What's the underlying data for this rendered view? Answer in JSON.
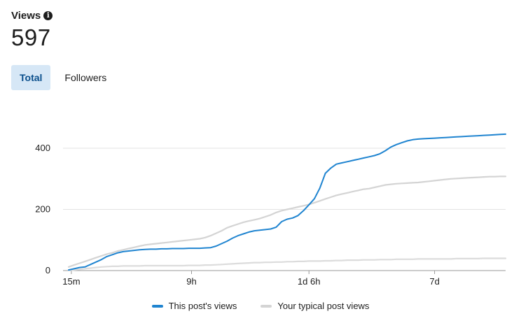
{
  "header": {
    "title": "Views",
    "info_icon": "i",
    "count": "597"
  },
  "tabs": [
    {
      "label": "Total",
      "active": true
    },
    {
      "label": "Followers",
      "active": false
    }
  ],
  "chart_data": {
    "type": "line",
    "ylim": [
      0,
      450
    ],
    "y_ticks": [
      0,
      200,
      400
    ],
    "x_ticks": [
      "15m",
      "9h",
      "1d 6h",
      "7d"
    ],
    "grid": true,
    "legend": "bottom",
    "x": [
      0,
      1,
      2,
      3,
      4,
      5,
      6,
      7,
      8,
      9,
      10,
      11,
      12,
      13,
      14,
      15,
      16,
      17,
      18,
      19,
      20,
      21,
      22,
      23,
      24,
      25,
      26,
      27,
      28,
      29,
      30,
      31,
      32,
      33,
      34,
      35,
      36,
      37,
      38,
      39,
      40,
      41,
      42,
      43,
      44,
      45,
      46,
      47,
      48,
      49,
      50,
      51,
      52,
      53,
      54,
      55,
      56,
      57,
      58,
      59,
      60,
      61,
      62,
      63,
      64,
      65,
      66,
      67,
      68,
      69,
      70,
      71,
      72,
      73,
      74,
      75,
      76,
      77,
      78,
      79,
      80
    ],
    "series": [
      {
        "name": "This post's views",
        "color": "#1f84d0",
        "values": [
          2,
          6,
          10,
          12,
          20,
          28,
          36,
          46,
          52,
          58,
          62,
          64,
          66,
          68,
          69,
          70,
          70,
          71,
          71,
          72,
          72,
          72,
          73,
          73,
          73,
          74,
          75,
          80,
          88,
          96,
          106,
          114,
          120,
          126,
          130,
          132,
          134,
          136,
          142,
          160,
          168,
          172,
          180,
          196,
          215,
          235,
          270,
          318,
          335,
          348,
          352,
          356,
          360,
          364,
          368,
          372,
          376,
          382,
          392,
          404,
          412,
          418,
          424,
          428,
          430,
          431,
          432,
          433,
          434,
          435,
          436,
          437,
          438,
          439,
          440,
          441,
          442,
          443,
          444,
          445,
          446
        ]
      },
      {
        "name": "Your typical post views",
        "color": "#d4d4d4",
        "values": [
          12,
          18,
          24,
          30,
          36,
          42,
          48,
          54,
          58,
          64,
          68,
          72,
          76,
          80,
          84,
          86,
          88,
          90,
          92,
          94,
          96,
          98,
          100,
          102,
          104,
          108,
          114,
          122,
          130,
          140,
          146,
          152,
          158,
          162,
          166,
          170,
          176,
          182,
          190,
          196,
          200,
          204,
          208,
          212,
          216,
          222,
          228,
          234,
          240,
          246,
          250,
          254,
          258,
          262,
          266,
          268,
          272,
          276,
          280,
          282,
          284,
          285,
          286,
          287,
          288,
          290,
          292,
          294,
          296,
          298,
          300,
          301,
          302,
          303,
          304,
          305,
          306,
          307,
          307,
          308,
          308
        ]
      },
      {
        "name": "",
        "color": "#dcdcdc",
        "values": [
          0,
          2,
          4,
          6,
          8,
          10,
          12,
          13,
          14,
          14,
          15,
          15,
          15,
          15,
          16,
          16,
          16,
          16,
          16,
          16,
          16,
          16,
          17,
          17,
          17,
          18,
          18,
          19,
          20,
          21,
          22,
          23,
          24,
          25,
          26,
          26,
          27,
          27,
          28,
          28,
          29,
          29,
          30,
          30,
          31,
          31,
          31,
          32,
          32,
          33,
          33,
          34,
          34,
          34,
          35,
          35,
          35,
          36,
          36,
          36,
          37,
          37,
          37,
          37,
          38,
          38,
          38,
          38,
          38,
          38,
          38,
          39,
          39,
          39,
          39,
          39,
          40,
          40,
          40,
          40,
          40
        ]
      }
    ]
  }
}
